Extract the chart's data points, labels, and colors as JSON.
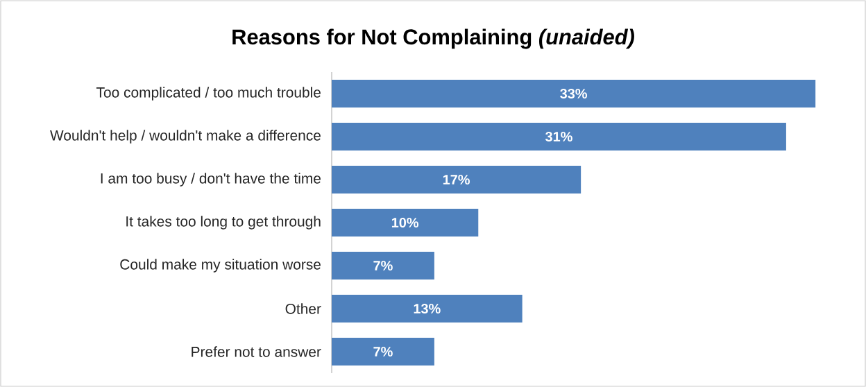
{
  "chart_data": {
    "type": "bar",
    "orientation": "horizontal",
    "title": "Reasons for Not Complaining *(unaided)*",
    "categories": [
      "Too complicated / too much trouble",
      "Wouldn't help / wouldn't make a difference",
      "I am too busy / don't have the time",
      "It takes too long to get through",
      "Could make my situation worse",
      "Other",
      "Prefer not to answer"
    ],
    "values": [
      33,
      31,
      17,
      10,
      7,
      13,
      7
    ],
    "value_labels": [
      "33%",
      "31%",
      "17%",
      "10%",
      "7%",
      "13%",
      "7%"
    ],
    "color": "#4f81bd"
  }
}
